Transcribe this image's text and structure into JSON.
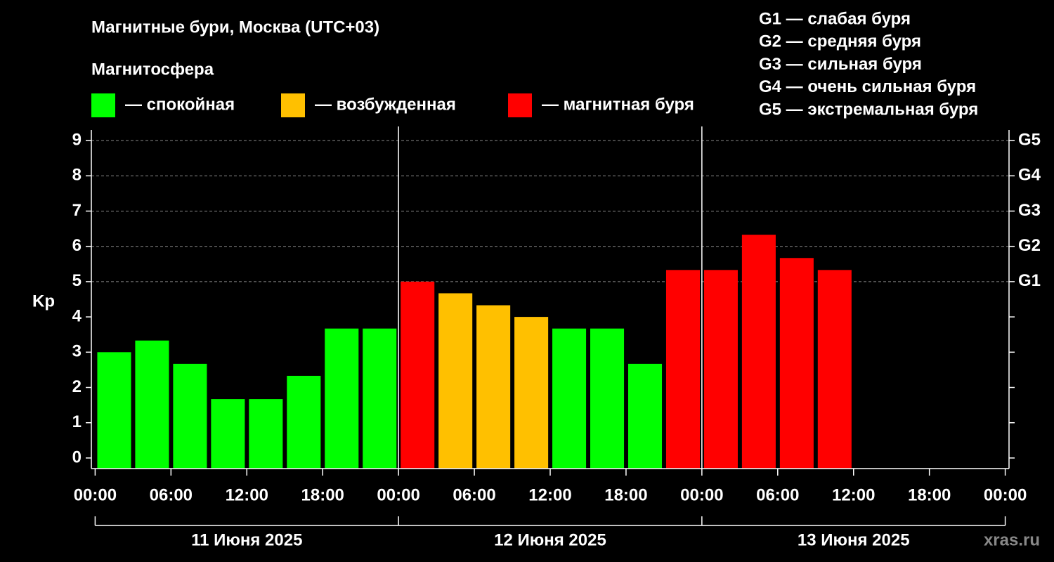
{
  "chart_data": {
    "type": "bar",
    "title": "Магнитные бури, Москва (UTC+03)",
    "legend_title": "Магнитосфера",
    "legend": [
      {
        "label": "— спокойная",
        "color": "#00ff00"
      },
      {
        "label": "— возбужденная",
        "color": "#ffc000"
      },
      {
        "label": "— магнитная буря",
        "color": "#ff0000"
      }
    ],
    "scale_notes": [
      "G1 — слабая буря",
      "G2 — средняя буря",
      "G3 — сильная буря",
      "G4 — очень сильная буря",
      "G5 — экстремальная буря"
    ],
    "y_label": "Kp",
    "x": [
      1.5,
      4.5,
      7.5,
      10.5,
      13.5,
      16.5,
      19.5,
      22.5,
      25.5,
      28.5,
      31.5,
      34.5,
      37.5,
      40.5,
      43.5,
      46.5,
      49.5,
      52.5,
      55.5,
      58.5
    ],
    "values": [
      3.0,
      3.33,
      2.67,
      1.67,
      1.67,
      2.33,
      3.67,
      3.67,
      5.0,
      4.67,
      4.33,
      4.0,
      3.67,
      3.67,
      2.67,
      5.33,
      5.33,
      6.33,
      5.67,
      5.33
    ],
    "colors": [
      "#00ff00",
      "#00ff00",
      "#00ff00",
      "#00ff00",
      "#00ff00",
      "#00ff00",
      "#00ff00",
      "#00ff00",
      "#ff0000",
      "#ffc000",
      "#ffc000",
      "#ffc000",
      "#00ff00",
      "#00ff00",
      "#00ff00",
      "#ff0000",
      "#ff0000",
      "#ff0000",
      "#ff0000",
      "#ff0000"
    ],
    "xlim": [
      -0.3,
      72.3
    ],
    "xticks": [
      {
        "value": 0,
        "label": "00:00"
      },
      {
        "value": 6,
        "label": "06:00"
      },
      {
        "value": 12,
        "label": "12:00"
      },
      {
        "value": 18,
        "label": "18:00"
      },
      {
        "value": 24,
        "label": "00:00"
      },
      {
        "value": 30,
        "label": "06:00"
      },
      {
        "value": 36,
        "label": "12:00"
      },
      {
        "value": 42,
        "label": "18:00"
      },
      {
        "value": 48,
        "label": "00:00"
      },
      {
        "value": 54,
        "label": "06:00"
      },
      {
        "value": 60,
        "label": "12:00"
      },
      {
        "value": 66,
        "label": "18:00"
      },
      {
        "value": 72,
        "label": "00:00"
      }
    ],
    "days": [
      "11 Июня 2025",
      "12 Июня 2025",
      "13 Июня 2025"
    ],
    "ylim": [
      -0.3,
      9.3
    ],
    "yticks": [
      0,
      1,
      2,
      3,
      4,
      5,
      6,
      7,
      8,
      9
    ],
    "y2lim": [
      -0.3,
      9.3
    ],
    "y2ticks": [
      {
        "value": 5,
        "label": "G1"
      },
      {
        "value": 6,
        "label": "G2"
      },
      {
        "value": 7,
        "label": "G3"
      },
      {
        "value": 8,
        "label": "G4"
      },
      {
        "value": 9,
        "label": "G5"
      }
    ],
    "grid": true,
    "watermark": "xras.ru"
  }
}
